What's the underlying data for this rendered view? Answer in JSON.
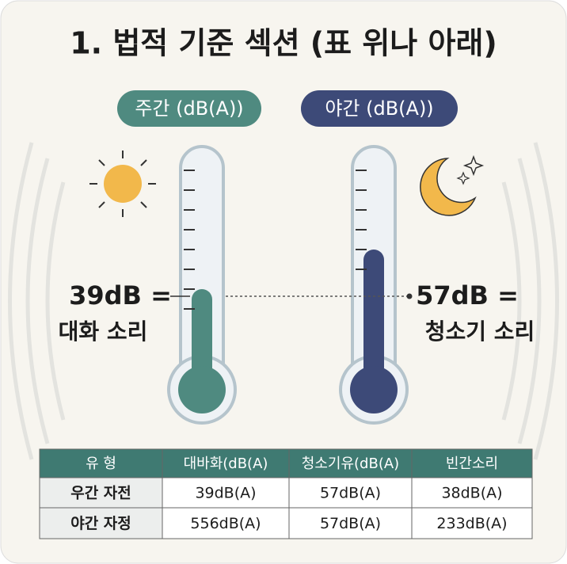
{
  "title": "1. 법적 기준 섹션 (표 위나 아래)",
  "thermometers": [
    {
      "label": "주간 (dB(A))",
      "reading": "39dB =",
      "description": "대화 소리"
    },
    {
      "label": "야간 (dB(A))",
      "reading": "57dB =",
      "description": "청소기 소리"
    }
  ],
  "table": {
    "header": [
      "유 형",
      "대바화(dB(A)",
      "청소기유(dB(A)",
      "빈간소리"
    ],
    "rows": [
      [
        "우간 자전",
        "39dB(A)",
        "57dB(A)",
        "38dB(A)"
      ],
      [
        "야간 자정",
        "556dB(A)",
        "57dB(A)",
        "233dB(A)"
      ]
    ]
  }
}
